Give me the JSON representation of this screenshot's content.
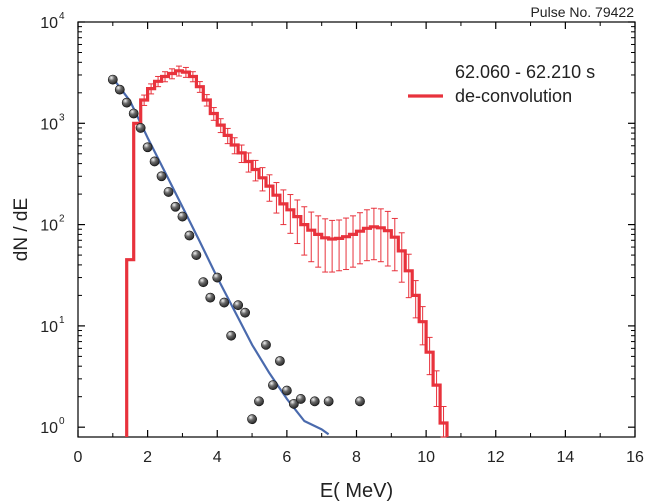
{
  "pulse_label": "Pulse No. 79422",
  "chart_data": {
    "type": "line",
    "xlabel": "E( MeV)",
    "ylabel": "dN / dE",
    "xlim": [
      0,
      16
    ],
    "ylim": [
      0.8,
      10000
    ],
    "yscale": "log",
    "x_ticks": [
      "0",
      "2",
      "4",
      "6",
      "8",
      "10",
      "12",
      "14",
      "16"
    ],
    "y_ticks": [
      {
        "base": "10",
        "exp": "0"
      },
      {
        "base": "10",
        "exp": "1"
      },
      {
        "base": "10",
        "exp": "2"
      },
      {
        "base": "10",
        "exp": "3"
      },
      {
        "base": "10",
        "exp": "4"
      }
    ],
    "grid": false,
    "legend_position": "top-right",
    "legend_title": "62.060 - 62.210 s",
    "colors": {
      "histogram": "#e8323c",
      "fit": "#4a6aad",
      "points": "#2a2a2a"
    },
    "series": [
      {
        "name": "de-convolution",
        "kind": "step-histogram-with-errors",
        "bin_width": 0.2,
        "x": [
          1.5,
          1.7,
          1.9,
          2.1,
          2.3,
          2.5,
          2.7,
          2.9,
          3.1,
          3.3,
          3.5,
          3.7,
          3.9,
          4.1,
          4.3,
          4.5,
          4.7,
          4.9,
          5.1,
          5.3,
          5.5,
          5.7,
          5.9,
          6.1,
          6.3,
          6.5,
          6.7,
          6.9,
          7.1,
          7.3,
          7.5,
          7.7,
          7.9,
          8.1,
          8.3,
          8.5,
          8.7,
          8.9,
          9.1,
          9.3,
          9.5,
          9.7,
          9.9,
          10.1,
          10.3,
          10.5
        ],
        "values": [
          45,
          1000,
          1700,
          2200,
          2600,
          2900,
          3100,
          3300,
          3200,
          2900,
          2300,
          1700,
          1250,
          960,
          760,
          610,
          510,
          420,
          350,
          290,
          240,
          195,
          160,
          140,
          120,
          100,
          88,
          80,
          74,
          72,
          73,
          76,
          80,
          86,
          92,
          95,
          93,
          87,
          75,
          55,
          35,
          20,
          11,
          5.5,
          2.6,
          1.1
        ],
        "errors_low": [
          0,
          0,
          200,
          250,
          300,
          330,
          350,
          370,
          360,
          330,
          280,
          220,
          180,
          150,
          130,
          110,
          100,
          90,
          80,
          75,
          70,
          65,
          60,
          58,
          55,
          50,
          45,
          42,
          40,
          38,
          38,
          40,
          42,
          45,
          48,
          50,
          50,
          48,
          40,
          28,
          16,
          8,
          4.5,
          2.2,
          1.0,
          0.5
        ],
        "errors_high": [
          0,
          0,
          200,
          250,
          300,
          330,
          350,
          370,
          360,
          330,
          280,
          220,
          180,
          150,
          130,
          110,
          100,
          90,
          80,
          75,
          70,
          65,
          60,
          58,
          55,
          50,
          45,
          42,
          40,
          38,
          38,
          40,
          42,
          45,
          48,
          50,
          50,
          48,
          40,
          28,
          16,
          8,
          4.5,
          2.2,
          1.0,
          0.5
        ]
      },
      {
        "kind": "markers",
        "x": [
          1.0,
          1.2,
          1.4,
          1.6,
          1.8,
          2.0,
          2.2,
          2.4,
          2.6,
          2.8,
          3.0,
          3.2,
          3.4,
          3.6,
          3.8,
          4.0,
          4.2,
          4.4,
          4.6,
          4.8,
          5.0,
          5.2,
          5.4,
          5.6,
          5.8,
          6.0,
          6.2,
          6.4,
          6.8,
          7.2,
          8.1
        ],
        "values": [
          2700,
          2150,
          1600,
          1250,
          900,
          580,
          420,
          300,
          210,
          150,
          120,
          78,
          50,
          27,
          19,
          30,
          17,
          8,
          16,
          13.5,
          1.2,
          1.8,
          6.5,
          2.6,
          4.5,
          2.3,
          1.7,
          1.9,
          1.8,
          1.8,
          1.8
        ]
      },
      {
        "kind": "fit-curve",
        "x": [
          1.0,
          1.5,
          2.0,
          2.5,
          3.0,
          3.5,
          4.0,
          4.5,
          5.0,
          5.5,
          6.0,
          6.5,
          7.0,
          7.2
        ],
        "values": [
          2800,
          1650,
          720,
          330,
          150,
          68,
          30,
          14,
          6.5,
          3.4,
          1.9,
          1.15,
          0.95,
          0.85
        ]
      }
    ]
  }
}
